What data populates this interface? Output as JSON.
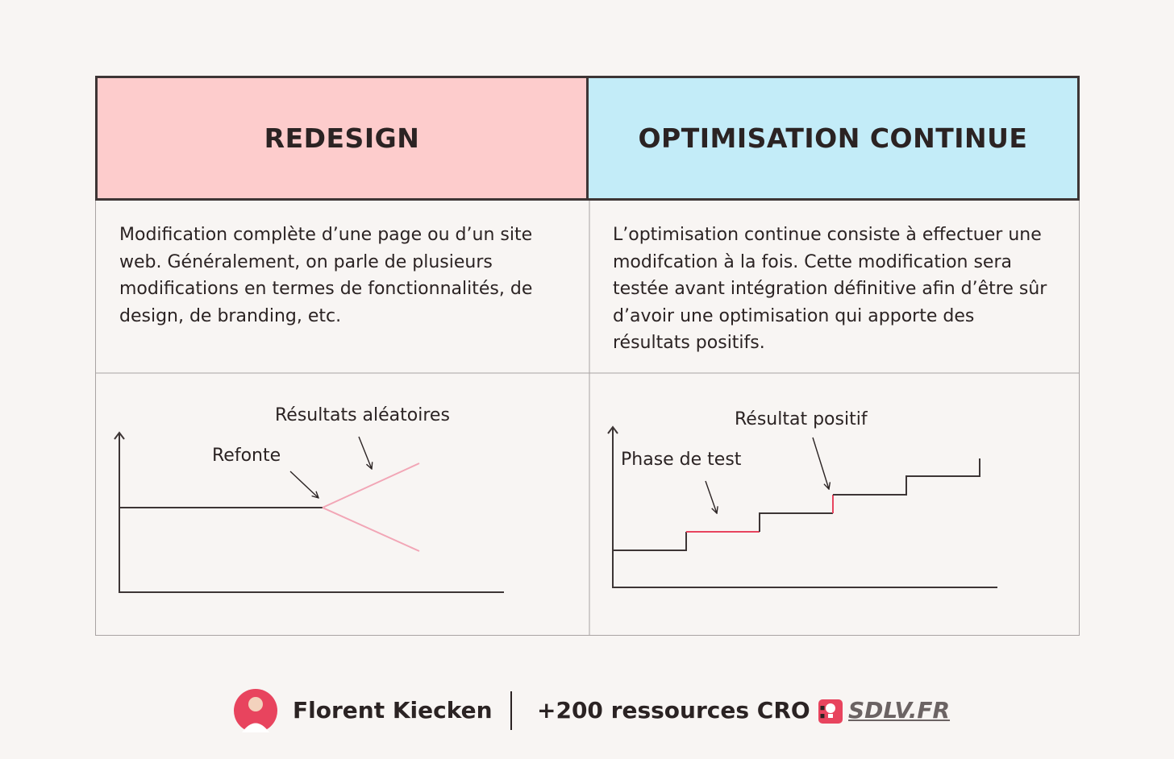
{
  "table": {
    "headers": [
      "REDESIGN",
      "OPTIMISATION CONTINUE"
    ],
    "descriptions": [
      "Modification complète d’une page ou d’un site web. Généralement, on parle de plusieurs modifications en termes de fonctionnalités, de design, de branding, etc.",
      "L’optimisation continue consiste à effectuer une modifcation à la fois. Cette modification sera testée avant intégration définitive afin d’être sûr d’avoir une optimisation qui apporte des résultats positifs."
    ],
    "diagrams": [
      {
        "labels": [
          "Refonte",
          "Résultats aléatoires"
        ]
      },
      {
        "labels": [
          "Phase de test",
          "Résultat positif"
        ]
      }
    ]
  },
  "footer": {
    "author": "Florent Kiecken",
    "resources": "+200 ressources CRO :",
    "link": "SDLV.FR"
  }
}
